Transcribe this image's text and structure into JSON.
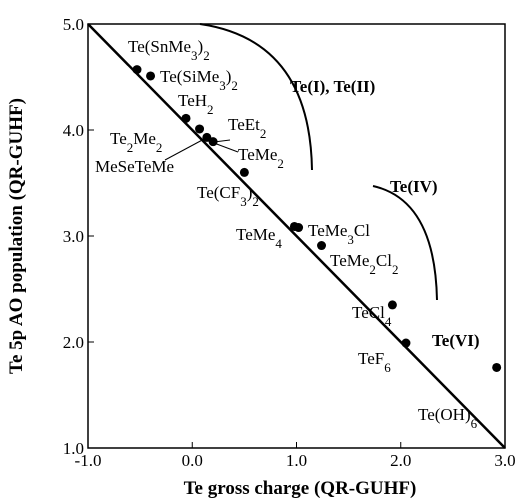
{
  "chart_data": {
    "type": "scatter",
    "xlabel": "Te gross charge (QR-GUHF)",
    "ylabel": "Te 5p AO population (QR-GUHF)",
    "xlim": [
      -1.0,
      3.0
    ],
    "ylim": [
      1.0,
      5.0
    ],
    "xticks": [
      {
        "value": -1.0,
        "label": "-1.0"
      },
      {
        "value": 0.0,
        "label": "0.0"
      },
      {
        "value": 1.0,
        "label": "1.0"
      },
      {
        "value": 2.0,
        "label": "2.0"
      },
      {
        "value": 3.0,
        "label": "3.0"
      }
    ],
    "yticks": [
      {
        "value": 1.0,
        "label": "1.0"
      },
      {
        "value": 2.0,
        "label": "2.0"
      },
      {
        "value": 3.0,
        "label": "3.0"
      },
      {
        "value": 4.0,
        "label": "4.0"
      },
      {
        "value": 5.0,
        "label": "5.0"
      }
    ],
    "series": [
      {
        "color": "#000000",
        "x": [
          -0.53,
          -0.4,
          -0.06,
          0.07,
          0.14,
          0.2,
          0.5,
          0.98,
          1.02,
          1.24,
          1.92,
          2.05,
          2.92
        ],
        "values": [
          4.57,
          4.51,
          4.11,
          4.01,
          3.93,
          3.89,
          3.6,
          3.09,
          3.08,
          2.91,
          2.35,
          1.99,
          1.76
        ]
      }
    ],
    "fit_line": {
      "x": [
        -1.0,
        3.0
      ],
      "values": [
        5.0,
        1.0
      ]
    },
    "annotations": [
      "Te(SnMe3)2",
      "Te(SiMe3)2",
      "TeH2",
      "TeEt2",
      "Te2Me2",
      "MeSeTeMe",
      "TeMe2",
      "Te(CF3)2",
      "TeMe4",
      "TeMe3Cl",
      "TeMe2Cl2",
      "TeCl4",
      "TeF6",
      "Te(OH)6"
    ],
    "regions": [
      "Te(I), Te(II)",
      "Te(IV)",
      "Te(VI)"
    ]
  }
}
